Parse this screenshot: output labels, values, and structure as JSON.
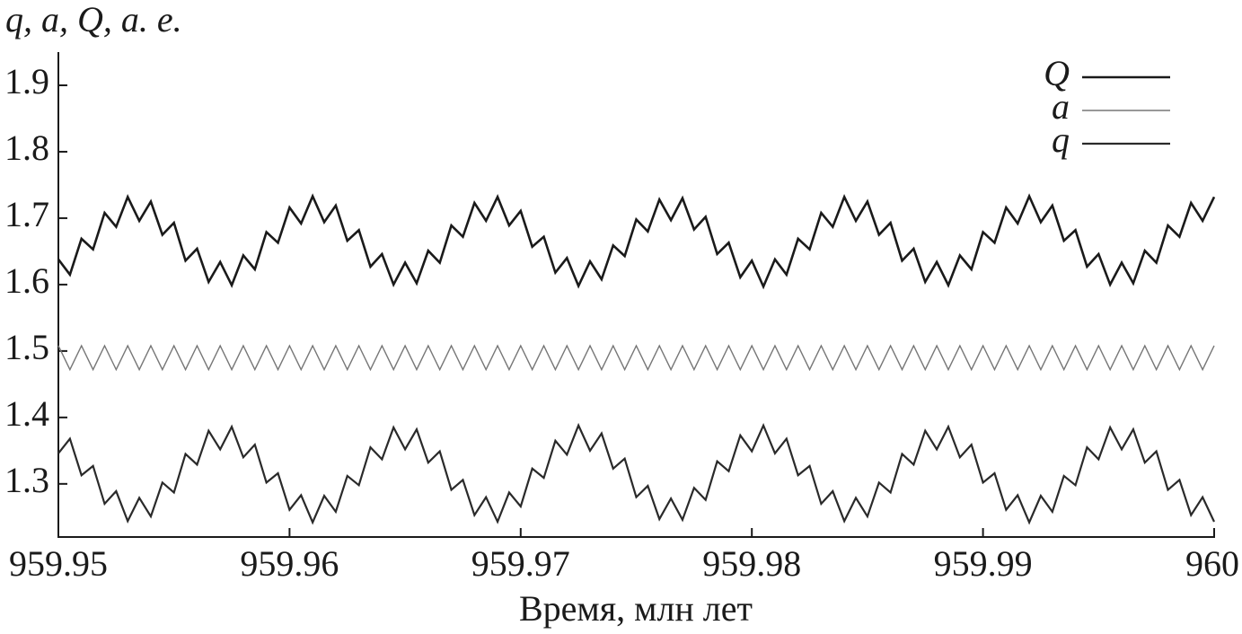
{
  "chart_data": {
    "type": "line",
    "y_label": "q, a, Q, а. е.",
    "x_label": "Время, млн лет",
    "xlim": [
      959.95,
      960
    ],
    "xticks": [
      959.95,
      959.96,
      959.97,
      959.98,
      959.99,
      960
    ],
    "ylim": [
      1.22,
      1.95
    ],
    "yticks": [
      1.3,
      1.4,
      1.5,
      1.6,
      1.7,
      1.8,
      1.9
    ],
    "legend": "upper right",
    "x": [
      959.95,
      959.9505,
      959.951,
      959.9515,
      959.952,
      959.9525,
      959.953,
      959.9535,
      959.954,
      959.9545,
      959.955,
      959.9555,
      959.956,
      959.9565,
      959.957,
      959.9575,
      959.958,
      959.9585,
      959.959,
      959.9595,
      959.96,
      959.9605,
      959.961,
      959.9615,
      959.962,
      959.9625,
      959.963,
      959.9635,
      959.964,
      959.9645,
      959.965,
      959.9655,
      959.966,
      959.9665,
      959.967,
      959.9675,
      959.968,
      959.9685,
      959.969,
      959.9695,
      959.97,
      959.9705,
      959.971,
      959.9715,
      959.972,
      959.9725,
      959.973,
      959.9735,
      959.974,
      959.9745,
      959.975,
      959.9755,
      959.976,
      959.9765,
      959.977,
      959.9775,
      959.978,
      959.9785,
      959.979,
      959.9795,
      959.98,
      959.9805,
      959.981,
      959.9815,
      959.982,
      959.9825,
      959.983,
      959.9835,
      959.984,
      959.9845,
      959.985,
      959.9855,
      959.986,
      959.9865,
      959.987,
      959.9875,
      959.988,
      959.9885,
      959.989,
      959.9895,
      959.99,
      959.9905,
      959.991,
      959.9915,
      959.992,
      959.9925,
      959.993,
      959.9935,
      959.994,
      959.9945,
      959.995,
      959.9955,
      959.996,
      959.9965,
      959.997,
      959.9975,
      959.998,
      959.9985,
      959.999,
      959.9995,
      960
    ],
    "series": [
      {
        "name": "Q",
        "color": "#1a1a1a",
        "width": 2.6,
        "values": [
          1.638,
          1.615,
          1.669,
          1.653,
          1.708,
          1.687,
          1.732,
          1.696,
          1.725,
          1.675,
          1.693,
          1.636,
          1.654,
          1.604,
          1.634,
          1.599,
          1.644,
          1.623,
          1.679,
          1.663,
          1.716,
          1.692,
          1.733,
          1.694,
          1.719,
          1.666,
          1.682,
          1.627,
          1.646,
          1.6,
          1.633,
          1.602,
          1.651,
          1.633,
          1.689,
          1.672,
          1.723,
          1.696,
          1.732,
          1.689,
          1.711,
          1.657,
          1.672,
          1.618,
          1.64,
          1.598,
          1.635,
          1.608,
          1.659,
          1.643,
          1.698,
          1.68,
          1.728,
          1.697,
          1.73,
          1.683,
          1.702,
          1.646,
          1.663,
          1.611,
          1.636,
          1.597,
          1.638,
          1.615,
          1.669,
          1.653,
          1.708,
          1.687,
          1.732,
          1.696,
          1.725,
          1.675,
          1.693,
          1.636,
          1.654,
          1.604,
          1.634,
          1.599,
          1.644,
          1.623,
          1.679,
          1.663,
          1.716,
          1.692,
          1.733,
          1.694,
          1.719,
          1.666,
          1.682,
          1.627,
          1.646,
          1.6,
          1.633,
          1.602,
          1.651,
          1.633,
          1.689,
          1.672,
          1.723,
          1.696,
          1.732
        ]
      },
      {
        "name": "a",
        "color": "#777777",
        "width": 1.4,
        "values": [
          1.508,
          1.472,
          1.508,
          1.472,
          1.508,
          1.472,
          1.508,
          1.472,
          1.508,
          1.472,
          1.508,
          1.472,
          1.508,
          1.472,
          1.508,
          1.472,
          1.508,
          1.472,
          1.508,
          1.472,
          1.508,
          1.472,
          1.508,
          1.472,
          1.508,
          1.472,
          1.508,
          1.472,
          1.508,
          1.472,
          1.508,
          1.472,
          1.508,
          1.472,
          1.508,
          1.472,
          1.508,
          1.472,
          1.508,
          1.472,
          1.508,
          1.472,
          1.508,
          1.472,
          1.508,
          1.472,
          1.508,
          1.472,
          1.508,
          1.472,
          1.508,
          1.472,
          1.508,
          1.472,
          1.508,
          1.472,
          1.508,
          1.472,
          1.508,
          1.472,
          1.508,
          1.472,
          1.508,
          1.472,
          1.508,
          1.472,
          1.508,
          1.472,
          1.508,
          1.472,
          1.508,
          1.472,
          1.508,
          1.472,
          1.508,
          1.472,
          1.508,
          1.472,
          1.508,
          1.472,
          1.508,
          1.472,
          1.508,
          1.472,
          1.508,
          1.472,
          1.508,
          1.472,
          1.508,
          1.472,
          1.508,
          1.472,
          1.508,
          1.472,
          1.508,
          1.472,
          1.508,
          1.472,
          1.508,
          1.472,
          1.508
        ]
      },
      {
        "name": "q",
        "color": "#2a2a2a",
        "width": 2.2,
        "values": [
          1.346,
          1.368,
          1.313,
          1.327,
          1.27,
          1.289,
          1.244,
          1.279,
          1.251,
          1.302,
          1.287,
          1.345,
          1.329,
          1.38,
          1.352,
          1.386,
          1.34,
          1.359,
          1.302,
          1.316,
          1.261,
          1.283,
          1.242,
          1.282,
          1.258,
          1.312,
          1.298,
          1.355,
          1.337,
          1.385,
          1.352,
          1.382,
          1.332,
          1.349,
          1.291,
          1.306,
          1.253,
          1.28,
          1.243,
          1.287,
          1.266,
          1.323,
          1.309,
          1.365,
          1.344,
          1.388,
          1.35,
          1.376,
          1.323,
          1.338,
          1.28,
          1.297,
          1.247,
          1.278,
          1.246,
          1.294,
          1.276,
          1.334,
          1.319,
          1.373,
          1.349,
          1.388,
          1.346,
          1.368,
          1.313,
          1.327,
          1.27,
          1.289,
          1.244,
          1.279,
          1.251,
          1.302,
          1.287,
          1.345,
          1.329,
          1.38,
          1.352,
          1.386,
          1.34,
          1.359,
          1.302,
          1.316,
          1.261,
          1.283,
          1.242,
          1.282,
          1.258,
          1.312,
          1.298,
          1.355,
          1.337,
          1.385,
          1.352,
          1.382,
          1.332,
          1.349,
          1.291,
          1.306,
          1.253,
          1.28,
          1.243
        ]
      }
    ]
  }
}
